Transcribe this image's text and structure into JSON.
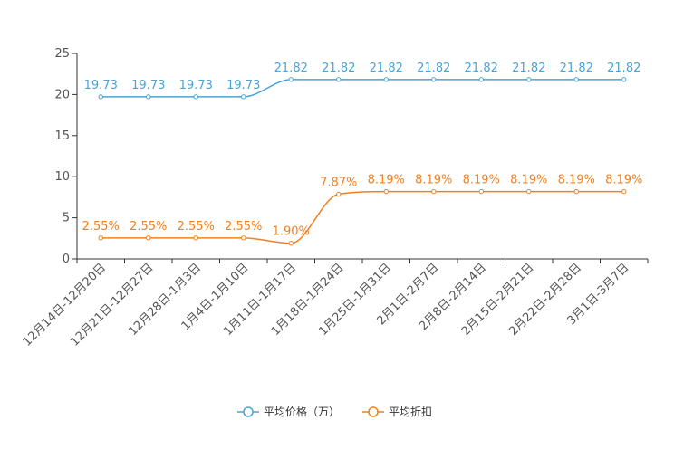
{
  "chart_data": {
    "type": "line",
    "categories": [
      "12月14日-12月20日",
      "12月21日-12月27日",
      "12月28日-1月3日",
      "1月4日-1月10日",
      "1月11日-1月17日",
      "1月18日-1月24日",
      "1月25日-1月31日",
      "2月1日-2月7日",
      "2月8日-2月14日",
      "2月15日-2月21日",
      "2月22日-2月28日",
      "3月1日-3月7日"
    ],
    "series": [
      {
        "name": "平均价格（万）",
        "color": "#4aa3d4",
        "values": [
          19.73,
          19.73,
          19.73,
          19.73,
          21.82,
          21.82,
          21.82,
          21.82,
          21.82,
          21.82,
          21.82,
          21.82
        ],
        "labels": [
          "19.73",
          "19.73",
          "19.73",
          "19.73",
          "21.82",
          "21.82",
          "21.82",
          "21.82",
          "21.82",
          "21.82",
          "21.82",
          "21.82"
        ]
      },
      {
        "name": "平均折扣",
        "color": "#f2801f",
        "values": [
          2.55,
          2.55,
          2.55,
          2.55,
          1.9,
          7.87,
          8.19,
          8.19,
          8.19,
          8.19,
          8.19,
          8.19
        ],
        "labels": [
          "2.55%",
          "2.55%",
          "2.55%",
          "2.55%",
          "1.90%",
          "7.87%",
          "8.19%",
          "8.19%",
          "8.19%",
          "8.19%",
          "8.19%",
          "8.19%"
        ]
      }
    ],
    "yticks": [
      0,
      5,
      10,
      15,
      20,
      25
    ],
    "ylim": [
      0,
      25
    ],
    "legend_position": "bottom-center"
  }
}
